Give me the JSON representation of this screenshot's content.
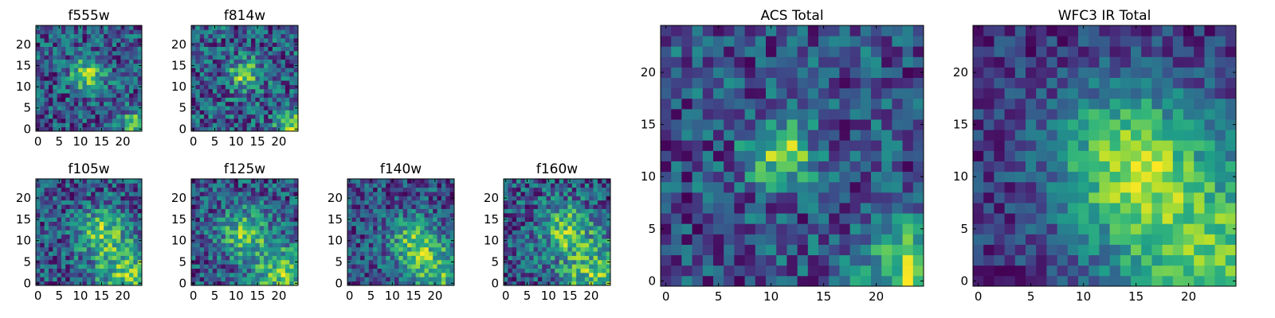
{
  "figure": {
    "description_colormap": "viridis",
    "colormap_stops": [
      "#440154",
      "#482878",
      "#3e4989",
      "#31688e",
      "#26828e",
      "#1f9e89",
      "#35b779",
      "#6ece58",
      "#b5de2b",
      "#fde725"
    ]
  },
  "chart_data": [
    {
      "type": "heatmap",
      "title": "f555w",
      "size": 25,
      "seed": 11,
      "bright_spots": [
        [
          12,
          13,
          3.0
        ],
        [
          23,
          1,
          2.5
        ]
      ],
      "noise": 0.55,
      "xticks": [
        0,
        5,
        10,
        15,
        20
      ],
      "yticks": [
        0,
        5,
        10,
        15,
        20
      ],
      "xlim": [
        -0.5,
        24.5
      ],
      "ylim": [
        -0.5,
        24.5
      ]
    },
    {
      "type": "heatmap",
      "title": "f814w",
      "size": 25,
      "seed": 23,
      "bright_spots": [
        [
          12,
          13,
          2.5
        ],
        [
          23,
          1,
          2.5
        ]
      ],
      "noise": 0.6,
      "xticks": [
        0,
        5,
        10,
        15,
        20
      ],
      "yticks": [
        0,
        5,
        10,
        15,
        20
      ],
      "xlim": [
        -0.5,
        24.5
      ],
      "ylim": [
        -0.5,
        24.5
      ]
    },
    {
      "type": "heatmap",
      "title": "f105w",
      "size": 25,
      "seed": 37,
      "bright_spots": [
        [
          21,
          2,
          5.0
        ],
        [
          15,
          12,
          4.0
        ]
      ],
      "noise": 0.6,
      "xticks": [
        0,
        5,
        10,
        15,
        20
      ],
      "yticks": [
        0,
        5,
        10,
        15,
        20
      ],
      "xlim": [
        -0.5,
        24.5
      ],
      "ylim": [
        -0.5,
        24.5
      ]
    },
    {
      "type": "heatmap",
      "title": "f125w",
      "size": 25,
      "seed": 41,
      "bright_spots": [
        [
          21,
          2,
          5.0
        ],
        [
          12,
          12,
          4.0
        ]
      ],
      "noise": 0.6,
      "xticks": [
        0,
        5,
        10,
        15,
        20
      ],
      "yticks": [
        0,
        5,
        10,
        15,
        20
      ],
      "xlim": [
        -0.5,
        24.5
      ],
      "ylim": [
        -0.5,
        24.5
      ]
    },
    {
      "type": "heatmap",
      "title": "f140w",
      "size": 25,
      "seed": 53,
      "bright_spots": [
        [
          21,
          2,
          6.0
        ],
        [
          15,
          10,
          4.0
        ]
      ],
      "noise": 0.65,
      "xticks": [
        0,
        5,
        10,
        15,
        20
      ],
      "yticks": [
        0,
        5,
        10,
        15,
        20
      ],
      "xlim": [
        -0.5,
        24.5
      ],
      "ylim": [
        -0.5,
        24.5
      ]
    },
    {
      "type": "heatmap",
      "title": "f160w",
      "size": 25,
      "seed": 67,
      "bright_spots": [
        [
          21,
          2,
          6.0
        ],
        [
          14,
          13,
          4.0
        ]
      ],
      "noise": 0.65,
      "xticks": [
        0,
        5,
        10,
        15,
        20
      ],
      "yticks": [
        0,
        5,
        10,
        15,
        20
      ],
      "xlim": [
        -0.5,
        24.5
      ],
      "ylim": [
        -0.5,
        24.5
      ]
    },
    {
      "type": "heatmap",
      "title": "ACS Total",
      "size": 25,
      "seed": 79,
      "bright_spots": [
        [
          11,
          12,
          2.2
        ],
        [
          23,
          1,
          3.0
        ]
      ],
      "noise": 0.45,
      "xticks": [
        0,
        5,
        10,
        15,
        20
      ],
      "yticks": [
        0,
        5,
        10,
        15,
        20
      ],
      "xlim": [
        -0.5,
        24.5
      ],
      "ylim": [
        -0.5,
        24.5
      ]
    },
    {
      "type": "heatmap",
      "title": "WFC3 IR Total",
      "size": 25,
      "seed": 97,
      "bright_spots": [
        [
          22,
          2,
          7.0
        ],
        [
          14,
          12,
          5.0
        ]
      ],
      "noise": 0.3,
      "xticks": [
        0,
        5,
        10,
        15,
        20
      ],
      "yticks": [
        0,
        5,
        10,
        15,
        20
      ],
      "xlim": [
        -0.5,
        24.5
      ],
      "ylim": [
        -0.5,
        24.5
      ]
    }
  ]
}
